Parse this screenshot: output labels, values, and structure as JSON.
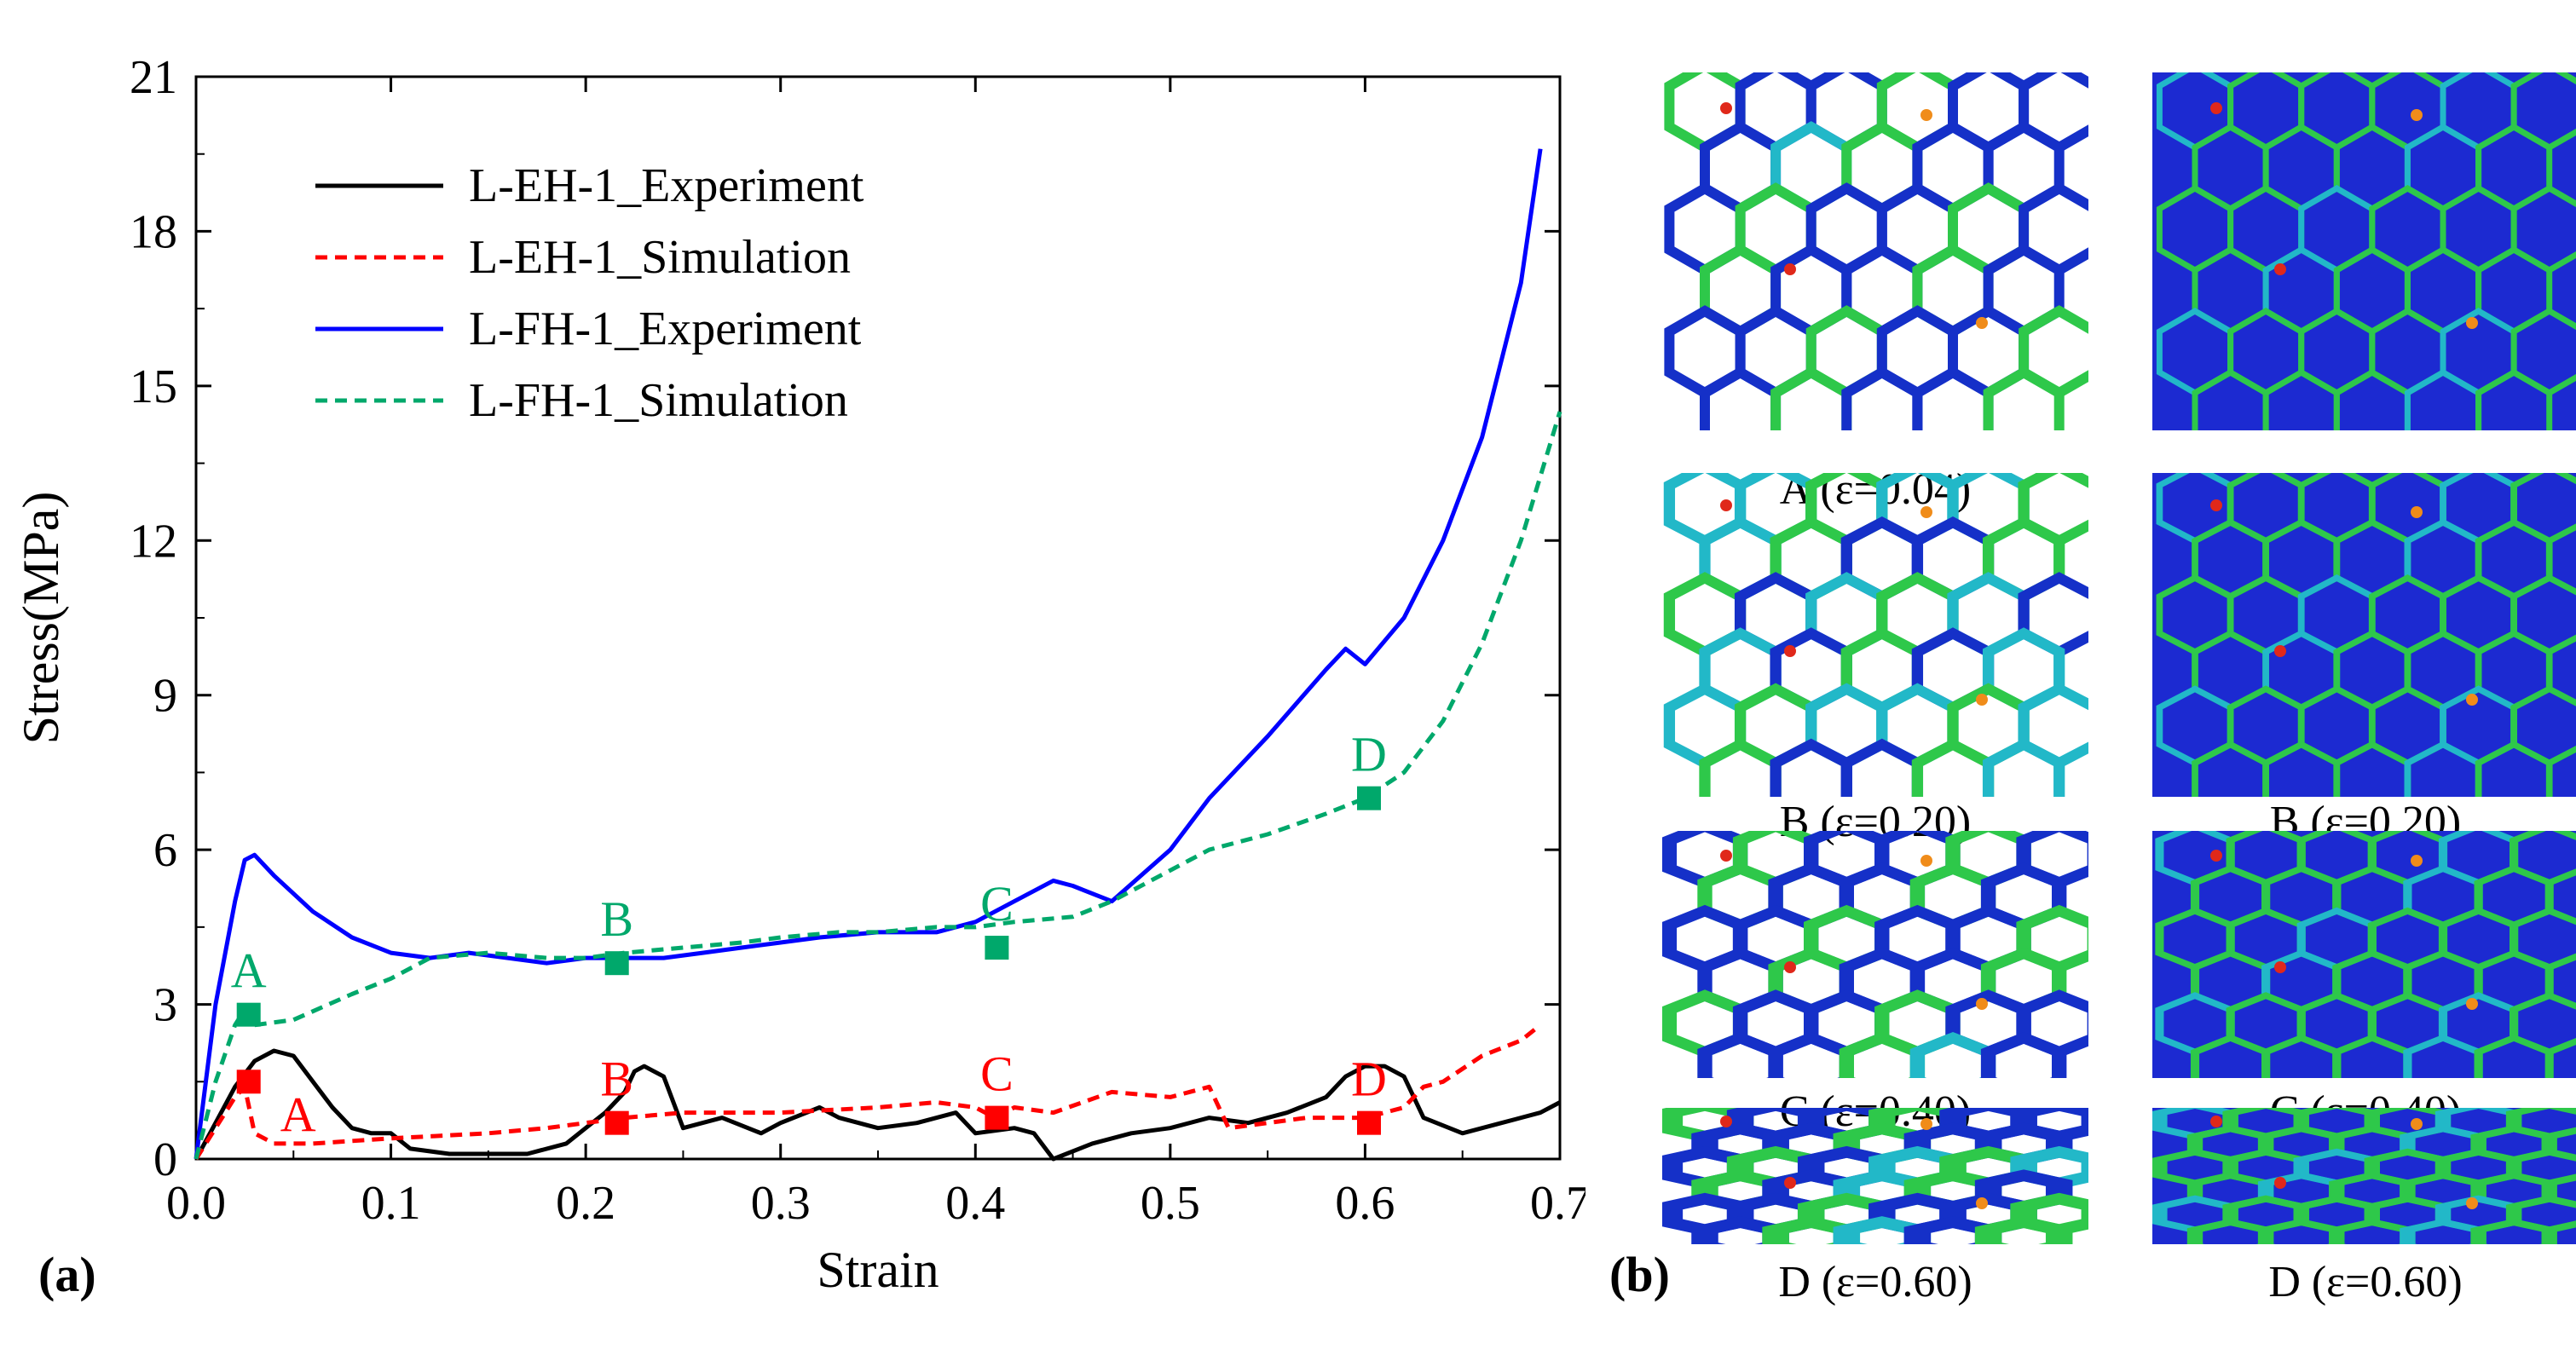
{
  "chart_data": {
    "type": "line",
    "panel_label": "(a)",
    "xlabel": "Strain",
    "ylabel": "Stress(MPa)",
    "xlim": [
      0.0,
      0.7
    ],
    "ylim": [
      0,
      21
    ],
    "xticks": [
      0.0,
      0.1,
      0.2,
      0.3,
      0.4,
      0.5,
      0.6,
      0.7
    ],
    "xtick_labels": [
      "0.0",
      "0.1",
      "0.2",
      "0.3",
      "0.4",
      "0.5",
      "0.6",
      "0.7"
    ],
    "yticks": [
      0,
      3,
      6,
      9,
      12,
      15,
      18,
      21
    ],
    "ytick_labels": [
      "0",
      "3",
      "6",
      "9",
      "12",
      "15",
      "18",
      "21"
    ],
    "legend_position": "top-left",
    "series": [
      {
        "name": "L-EH-1_Experiment",
        "color": "#000000",
        "style": "solid",
        "x": [
          0.0,
          0.01,
          0.02,
          0.03,
          0.04,
          0.05,
          0.06,
          0.07,
          0.08,
          0.09,
          0.1,
          0.11,
          0.13,
          0.15,
          0.17,
          0.19,
          0.2,
          0.21,
          0.22,
          0.225,
          0.23,
          0.24,
          0.25,
          0.27,
          0.29,
          0.3,
          0.32,
          0.33,
          0.35,
          0.37,
          0.39,
          0.4,
          0.42,
          0.43,
          0.44,
          0.46,
          0.48,
          0.5,
          0.52,
          0.54,
          0.56,
          0.58,
          0.59,
          0.6,
          0.61,
          0.62,
          0.63,
          0.65,
          0.67,
          0.69,
          0.7
        ],
        "y": [
          0.0,
          0.7,
          1.4,
          1.9,
          2.1,
          2.0,
          1.5,
          1.0,
          0.6,
          0.5,
          0.5,
          0.2,
          0.1,
          0.1,
          0.1,
          0.3,
          0.6,
          0.9,
          1.3,
          1.7,
          1.8,
          1.6,
          0.6,
          0.8,
          0.5,
          0.7,
          1.0,
          0.8,
          0.6,
          0.7,
          0.9,
          0.5,
          0.6,
          0.5,
          0.0,
          0.3,
          0.5,
          0.6,
          0.8,
          0.7,
          0.9,
          1.2,
          1.6,
          1.8,
          1.8,
          1.6,
          0.8,
          0.5,
          0.7,
          0.9,
          1.1
        ]
      },
      {
        "name": "L-EH-1_Simulation",
        "color": "#ff0000",
        "style": "dashed",
        "x": [
          0.0,
          0.01,
          0.02,
          0.025,
          0.03,
          0.04,
          0.06,
          0.1,
          0.15,
          0.18,
          0.2,
          0.22,
          0.25,
          0.3,
          0.35,
          0.38,
          0.4,
          0.41,
          0.42,
          0.44,
          0.47,
          0.5,
          0.52,
          0.53,
          0.55,
          0.57,
          0.6,
          0.62,
          0.63,
          0.64,
          0.66,
          0.68,
          0.69
        ],
        "y": [
          0.0,
          0.6,
          1.2,
          1.4,
          0.5,
          0.3,
          0.3,
          0.4,
          0.5,
          0.6,
          0.7,
          0.8,
          0.9,
          0.9,
          1.0,
          1.1,
          1.0,
          0.8,
          1.0,
          0.9,
          1.3,
          1.2,
          1.4,
          0.6,
          0.7,
          0.8,
          0.8,
          1.0,
          1.4,
          1.5,
          2.0,
          2.3,
          2.6
        ]
      },
      {
        "name": "L-FH-1_Experiment",
        "color": "#0000ff",
        "style": "solid",
        "x": [
          0.0,
          0.01,
          0.02,
          0.025,
          0.03,
          0.04,
          0.06,
          0.08,
          0.1,
          0.12,
          0.14,
          0.16,
          0.18,
          0.2,
          0.22,
          0.24,
          0.26,
          0.28,
          0.3,
          0.32,
          0.35,
          0.38,
          0.4,
          0.42,
          0.44,
          0.45,
          0.47,
          0.5,
          0.52,
          0.55,
          0.58,
          0.59,
          0.6,
          0.62,
          0.64,
          0.66,
          0.68,
          0.69
        ],
        "y": [
          0.0,
          3.0,
          5.0,
          5.8,
          5.9,
          5.5,
          4.8,
          4.3,
          4.0,
          3.9,
          4.0,
          3.9,
          3.8,
          3.9,
          3.9,
          3.9,
          4.0,
          4.1,
          4.2,
          4.3,
          4.4,
          4.4,
          4.6,
          5.0,
          5.4,
          5.3,
          5.0,
          6.0,
          7.0,
          8.2,
          9.5,
          9.9,
          9.6,
          10.5,
          12.0,
          14.0,
          17.0,
          19.6
        ]
      },
      {
        "name": "L-FH-1_Simulation",
        "color": "#00a86b",
        "style": "dashed",
        "x": [
          0.0,
          0.01,
          0.02,
          0.025,
          0.03,
          0.05,
          0.08,
          0.1,
          0.12,
          0.15,
          0.18,
          0.2,
          0.22,
          0.25,
          0.28,
          0.3,
          0.33,
          0.35,
          0.38,
          0.4,
          0.42,
          0.45,
          0.47,
          0.5,
          0.52,
          0.55,
          0.58,
          0.6,
          0.62,
          0.64,
          0.66,
          0.68,
          0.7
        ],
        "y": [
          0.0,
          1.5,
          2.6,
          2.9,
          2.6,
          2.7,
          3.2,
          3.5,
          3.9,
          4.0,
          3.9,
          3.9,
          4.0,
          4.1,
          4.2,
          4.3,
          4.4,
          4.4,
          4.5,
          4.5,
          4.6,
          4.7,
          5.0,
          5.6,
          6.0,
          6.3,
          6.7,
          7.0,
          7.5,
          8.5,
          10.0,
          12.0,
          14.5
        ]
      }
    ],
    "markers": [
      {
        "label": "A",
        "x": 0.027,
        "y": 1.5,
        "color": "#ff0000",
        "label_side": "below-right"
      },
      {
        "label": "B",
        "x": 0.216,
        "y": 0.7,
        "color": "#ff0000",
        "label_side": "above"
      },
      {
        "label": "C",
        "x": 0.411,
        "y": 0.8,
        "color": "#ff0000",
        "label_side": "above"
      },
      {
        "label": "D",
        "x": 0.602,
        "y": 0.7,
        "color": "#ff0000",
        "label_side": "above"
      },
      {
        "label": "A",
        "x": 0.027,
        "y": 2.8,
        "color": "#00a86b",
        "label_side": "above"
      },
      {
        "label": "B",
        "x": 0.216,
        "y": 3.8,
        "color": "#00a86b",
        "label_side": "above"
      },
      {
        "label": "C",
        "x": 0.411,
        "y": 4.1,
        "color": "#00a86b",
        "label_side": "above"
      },
      {
        "label": "D",
        "x": 0.602,
        "y": 7.0,
        "color": "#00a86b",
        "label_side": "above"
      }
    ]
  },
  "panel_b": {
    "label": "(b)",
    "rows": [
      {
        "strain_caption": "A (ε=0.04)",
        "compression": 0.0
      },
      {
        "strain_caption": "B (ε=0.20)",
        "compression": 0.2
      },
      {
        "strain_caption": "C (ε=0.40)",
        "compression": 0.4
      },
      {
        "strain_caption": "D (ε=0.60)",
        "compression": 0.6
      }
    ],
    "columns": [
      {
        "name": "open-honeycomb",
        "filled": false
      },
      {
        "name": "filled-honeycomb",
        "filled": true
      }
    ],
    "colors": {
      "fill": "#1c2ad1",
      "wall_blue": "#1530c8",
      "wall_cyan": "#22b8c8",
      "wall_green": "#2ec84a",
      "hot_orange": "#f08c1a",
      "hot_red": "#e0281a"
    }
  }
}
